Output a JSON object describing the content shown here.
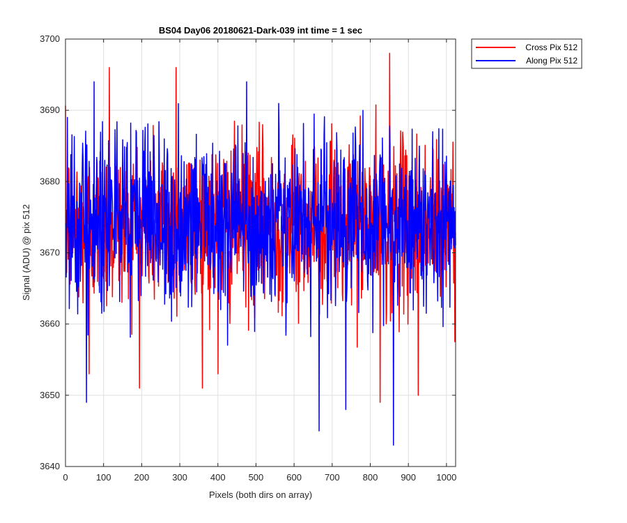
{
  "chart_data": {
    "type": "line",
    "title": "BS04 Day06 20180621-Dark-039 int time = 1 sec",
    "xlabel": "Pixels (both dirs on array)",
    "ylabel": "Signal (ADU) @ pix 512",
    "xlim": [
      0,
      1024
    ],
    "ylim": [
      3640,
      3700
    ],
    "xticks": [
      0,
      100,
      200,
      300,
      400,
      500,
      600,
      700,
      800,
      900,
      1000
    ],
    "yticks": [
      3640,
      3650,
      3660,
      3670,
      3680,
      3690,
      3700
    ],
    "grid": true,
    "legend_position": "outside-top-right",
    "series": [
      {
        "name": "Cross Pix 512",
        "color": "#ff0000",
        "noise_mean": 3674,
        "noise_std": 6,
        "n_points": 1024,
        "extremes": [
          {
            "x": 115,
            "y": 3696
          },
          {
            "x": 290,
            "y": 3696
          },
          {
            "x": 850,
            "y": 3698
          },
          {
            "x": 825,
            "y": 3649
          },
          {
            "x": 925,
            "y": 3650
          },
          {
            "x": 62,
            "y": 3653
          },
          {
            "x": 400,
            "y": 3653
          }
        ]
      },
      {
        "name": "Along Pix 512",
        "color": "#0000ff",
        "noise_mean": 3674,
        "noise_std": 6,
        "n_points": 1024,
        "extremes": [
          {
            "x": 75,
            "y": 3694
          },
          {
            "x": 475,
            "y": 3694
          },
          {
            "x": 55,
            "y": 3649
          },
          {
            "x": 665,
            "y": 3645
          },
          {
            "x": 735,
            "y": 3648
          },
          {
            "x": 860,
            "y": 3643
          },
          {
            "x": 5,
            "y": 3689
          }
        ]
      }
    ]
  }
}
